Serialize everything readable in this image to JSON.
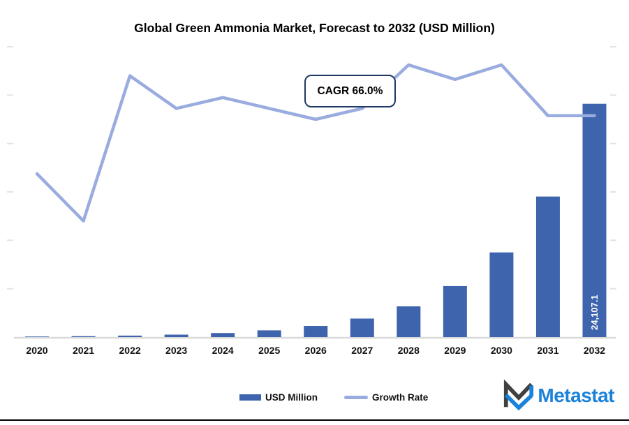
{
  "title": "Global Green Ammonia Market, Forecast to 2032 (USD Million)",
  "annotation": {
    "cagr_label": "CAGR 66.0%"
  },
  "legend": {
    "items": [
      {
        "label": "USD Million",
        "swatch": "bar"
      },
      {
        "label": "Growth Rate",
        "swatch": "line"
      }
    ]
  },
  "branding": {
    "wordmark": "Metastat"
  },
  "colors": {
    "bar": "#3d64ad",
    "line": "#9aacdf",
    "callout_border": "#1f3864",
    "axis_line": "#d9d9d9",
    "tick_mark": "#e3e3e3",
    "x_label_text": "#111111",
    "bar_label_text": "#ffffff",
    "title_text": "#000000",
    "brand_blue": "#1a82d9",
    "brand_dark": "#3f4040"
  },
  "chart_data": {
    "type": "bar",
    "subtype": "combo-bar-line-dual-axis",
    "title": "Global Green Ammonia Market, Forecast to 2032 (USD Million)",
    "categories": [
      "2020",
      "2021",
      "2022",
      "2023",
      "2024",
      "2025",
      "2026",
      "2027",
      "2028",
      "2029",
      "2030",
      "2031",
      "2032"
    ],
    "series": [
      {
        "name": "USD Million",
        "type": "bar",
        "color": "#3d64ad",
        "values": [
          55.1,
          91.4,
          151.7,
          251.9,
          418.1,
          694.0,
          1152.1,
          1912.5,
          3174.8,
          5270.1,
          8748.4,
          14522.4,
          24107.1
        ],
        "labeled_point": {
          "category": "2032",
          "label": "24,107.1"
        }
      },
      {
        "name": "Growth Rate",
        "type": "line",
        "color": "#9aacdf",
        "values_pct_estimated": [
          45,
          32,
          72,
          63,
          66,
          63,
          60,
          63,
          75,
          71,
          75,
          61,
          61
        ]
      }
    ],
    "annotations": [
      {
        "text": "CAGR 66.0%"
      }
    ],
    "xlabel": "",
    "ylabel": "",
    "primary_ylim": [
      0,
      30000
    ],
    "secondary_ylim": [
      0,
      80
    ],
    "gridlines": false,
    "y_tick_labels_visible": false,
    "legend_position": "bottom"
  }
}
